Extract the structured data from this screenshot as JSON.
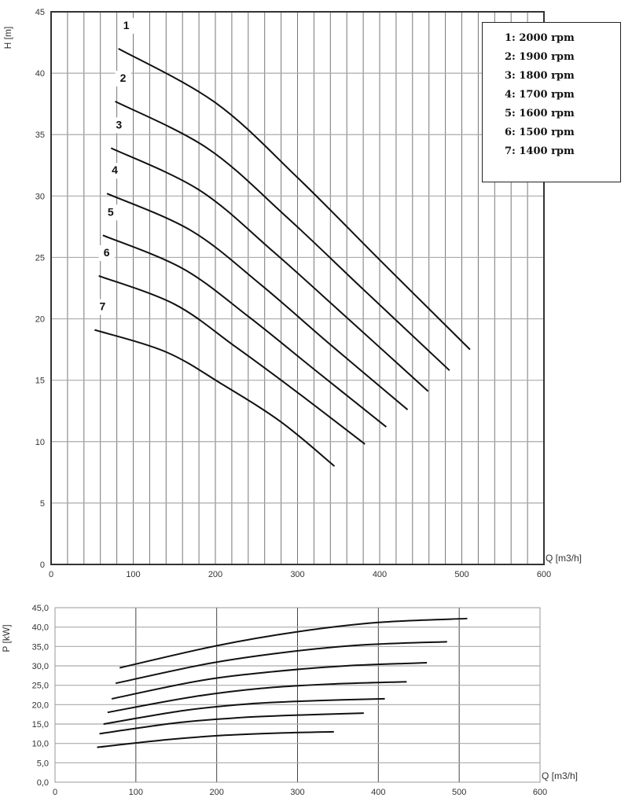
{
  "chart_data": [
    {
      "type": "line",
      "title": "",
      "xlabel": "Q [m3/h]",
      "ylabel": "H [m]",
      "xlim": [
        0,
        600
      ],
      "ylim": [
        0,
        45
      ],
      "xticks": [
        "0",
        "100",
        "200",
        "300",
        "400",
        "500",
        "600"
      ],
      "yticks": [
        "0",
        "5",
        "10",
        "15",
        "20",
        "25",
        "30",
        "35",
        "40",
        "45"
      ],
      "grid": true,
      "legend_position": "top-right",
      "legend": [
        "1: 2000 rpm",
        "2: 1900 rpm",
        "3: 1800 rpm",
        "4: 1700 rpm",
        "5: 1600 rpm",
        "6: 1500 rpm",
        "7: 1400 rpm"
      ],
      "series": [
        {
          "name": "1",
          "points": [
            [
              82,
              42.0
            ],
            [
              200,
              37.6
            ],
            [
              300,
              31.5
            ],
            [
              400,
              24.8
            ],
            [
              510,
              17.5
            ]
          ]
        },
        {
          "name": "2",
          "points": [
            [
              78,
              37.7
            ],
            [
              190,
              33.9
            ],
            [
              285,
              28.4
            ],
            [
              380,
              22.4
            ],
            [
              485,
              15.8
            ]
          ]
        },
        {
          "name": "3",
          "points": [
            [
              73,
              33.9
            ],
            [
              180,
              30.5
            ],
            [
              270,
              25.5
            ],
            [
              360,
              20.1
            ],
            [
              459,
              14.1
            ]
          ]
        },
        {
          "name": "4",
          "points": [
            [
              68,
              30.2
            ],
            [
              170,
              27.2
            ],
            [
              255,
              22.8
            ],
            [
              340,
              17.9
            ],
            [
              434,
              12.6
            ]
          ]
        },
        {
          "name": "5",
          "points": [
            [
              63,
              26.8
            ],
            [
              160,
              24.1
            ],
            [
              240,
              20.2
            ],
            [
              320,
              15.9
            ],
            [
              408,
              11.2
            ]
          ]
        },
        {
          "name": "6",
          "points": [
            [
              58,
              23.5
            ],
            [
              150,
              21.2
            ],
            [
              225,
              17.7
            ],
            [
              300,
              14.0
            ],
            [
              382,
              9.8
            ]
          ]
        },
        {
          "name": "7",
          "points": [
            [
              53,
              19.1
            ],
            [
              140,
              17.3
            ],
            [
              210,
              14.6
            ],
            [
              280,
              11.6
            ],
            [
              345,
              8.0
            ]
          ]
        }
      ]
    },
    {
      "type": "line",
      "title": "",
      "xlabel": "Q [m3/h]",
      "ylabel": "P [kW]",
      "xlim": [
        0,
        600
      ],
      "ylim": [
        0,
        45
      ],
      "xticks": [
        "0",
        "100",
        "200",
        "300",
        "400",
        "500",
        "600"
      ],
      "yticks": [
        "0,0",
        "5,0",
        "10,0",
        "15,0",
        "20,0",
        "25,0",
        "30,0",
        "35,0",
        "40,0",
        "45,0"
      ],
      "grid": true,
      "series": [
        {
          "name": "1",
          "points": [
            [
              80,
              29.5
            ],
            [
              200,
              35.2
            ],
            [
              300,
              38.8
            ],
            [
              400,
              41.2
            ],
            [
              510,
              42.2
            ]
          ]
        },
        {
          "name": "2",
          "points": [
            [
              75,
              25.5
            ],
            [
              190,
              30.6
            ],
            [
              285,
              33.5
            ],
            [
              380,
              35.4
            ],
            [
              485,
              36.2
            ]
          ]
        },
        {
          "name": "3",
          "points": [
            [
              70,
              21.5
            ],
            [
              180,
              26.2
            ],
            [
              270,
              28.5
            ],
            [
              360,
              30.0
            ],
            [
              460,
              30.8
            ]
          ]
        },
        {
          "name": "4",
          "points": [
            [
              65,
              18.0
            ],
            [
              170,
              22.0
            ],
            [
              255,
              24.2
            ],
            [
              340,
              25.3
            ],
            [
              435,
              25.9
            ]
          ]
        },
        {
          "name": "5",
          "points": [
            [
              60,
              15.0
            ],
            [
              160,
              18.5
            ],
            [
              240,
              20.2
            ],
            [
              320,
              21.0
            ],
            [
              408,
              21.5
            ]
          ]
        },
        {
          "name": "6",
          "points": [
            [
              55,
              12.5
            ],
            [
              150,
              15.3
            ],
            [
              225,
              16.6
            ],
            [
              300,
              17.3
            ],
            [
              382,
              17.8
            ]
          ]
        },
        {
          "name": "7",
          "points": [
            [
              52,
              9.0
            ],
            [
              140,
              11.0
            ],
            [
              210,
              12.1
            ],
            [
              280,
              12.7
            ],
            [
              345,
              13.0
            ]
          ]
        }
      ]
    }
  ]
}
